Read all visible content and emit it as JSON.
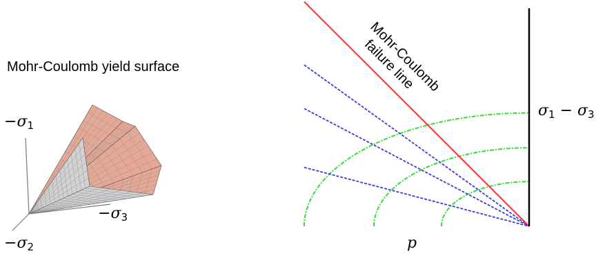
{
  "left_figure": {
    "title": "Mohr-Coulomb yield surface",
    "axis_labels": {
      "axis1_sign": "−",
      "axis1_sym": "σ",
      "axis1_sub": "1",
      "axis3_sign": "−",
      "axis3_sym": "σ",
      "axis3_sub": "3",
      "axis2_sign": "−",
      "axis2_sym": "σ",
      "axis2_sub": "2"
    },
    "colors": {
      "face_dark": "#333333",
      "face_light": "#d2d2d2",
      "face_pink": "#e6a896",
      "mesh": "#8a8a8a"
    }
  },
  "right_figure": {
    "failure_line_label_line1": "Mohr-Coulomb",
    "failure_line_label_line2": "failure line",
    "y_label": {
      "sym1": "σ",
      "sub1": "1",
      "op": " − ",
      "sym2": "σ",
      "sub2": "3"
    },
    "x_label": "p",
    "colors": {
      "failure_line": "#ff3030",
      "stress_paths": "#3a3ae0",
      "mohr_circles": "#33dd33",
      "axes": "#000000"
    },
    "failure_line": {
      "from": [
        -1.0,
        1.03
      ],
      "to": [
        0.0,
        0.0
      ]
    },
    "stress_paths": [
      {
        "start": [
          -1.0,
          0.74
        ]
      },
      {
        "start": [
          -1.0,
          0.54
        ]
      },
      {
        "start": [
          -1.0,
          0.27
        ]
      }
    ],
    "mohr_circles": [
      {
        "center": [
          0.0,
          0.0
        ],
        "radius_x": 1.0,
        "radius_y": 0.52
      },
      {
        "center": [
          0.0,
          0.0
        ],
        "radius_x": 0.69,
        "radius_y": 0.36
      },
      {
        "center": [
          0.0,
          0.0
        ],
        "radius_x": 0.39,
        "radius_y": 0.205
      }
    ]
  }
}
